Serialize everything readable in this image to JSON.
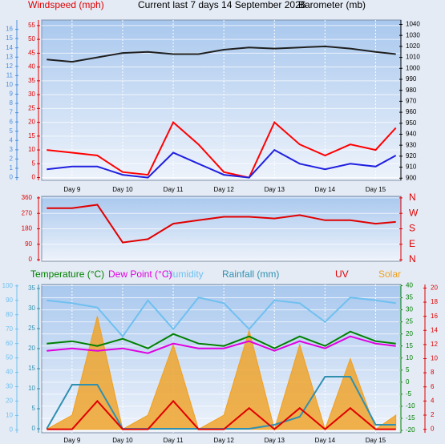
{
  "chart_data": [
    {
      "type": "line",
      "title": "Current last 7 days 14 September 2026",
      "ylabel": "Windspeed (mph)",
      "y2label": "Barometer (mb)",
      "x": [
        8.5,
        9,
        9.5,
        10,
        10.5,
        11,
        11.5,
        12,
        12.5,
        13,
        13.5,
        14,
        14.5,
        15,
        15.4
      ],
      "xlim": [
        8.4,
        15.5
      ],
      "xticks": [
        {
          "value": 9,
          "label": "Day 9"
        },
        {
          "value": 10,
          "label": "Day 10"
        },
        {
          "value": 11,
          "label": "Day 11"
        },
        {
          "value": 12,
          "label": "Day 12"
        },
        {
          "value": 13,
          "label": "Day 13"
        },
        {
          "value": 14,
          "label": "Day 14"
        },
        {
          "value": 15,
          "label": "Day 15"
        }
      ],
      "ylim": [
        -1,
        57
      ],
      "yticks": [
        0,
        5,
        10,
        15,
        20,
        25,
        30,
        35,
        40,
        45,
        50,
        55
      ],
      "y2lim": [
        898,
        1044
      ],
      "y2ticks": [
        900,
        910,
        920,
        930,
        940,
        950,
        960,
        970,
        980,
        990,
        1000,
        1010,
        1020,
        1030,
        1040
      ],
      "y3lim": [
        -0.3,
        17
      ],
      "y3ticks": [
        0,
        1,
        2,
        3,
        4,
        5,
        6,
        7,
        8,
        9,
        10,
        11,
        12,
        13,
        14,
        15,
        16
      ],
      "grid": "y",
      "series": [
        {
          "color": "#ff0000",
          "values": [
            10,
            9,
            8,
            2,
            1,
            20,
            12,
            2,
            0,
            20,
            12,
            8,
            12,
            10,
            18
          ]
        },
        {
          "color": "#2020e0",
          "values": [
            3,
            4,
            4,
            1,
            0,
            9,
            5,
            1,
            0,
            10,
            5,
            3,
            5,
            4,
            8
          ]
        },
        {
          "color": "#202020",
          "axis": "y2",
          "values": [
            1008,
            1006,
            1010,
            1014,
            1015,
            1013,
            1013,
            1017,
            1019,
            1018,
            1019,
            1020,
            1018,
            1015,
            1013
          ]
        }
      ]
    },
    {
      "type": "line",
      "x": [
        8.5,
        9,
        9.5,
        10,
        10.5,
        11,
        11.5,
        12,
        12.5,
        13,
        13.5,
        14,
        14.5,
        15,
        15.4
      ],
      "xlim": [
        8.4,
        15.5
      ],
      "ylim": [
        -9,
        369
      ],
      "yticks": [
        0,
        90,
        180,
        270,
        360
      ],
      "y2lim": [
        -9,
        369
      ],
      "y2ticks": [
        {
          "value": 360,
          "label": "N"
        },
        {
          "value": 270,
          "label": "W"
        },
        {
          "value": 180,
          "label": "S"
        },
        {
          "value": 90,
          "label": "E"
        },
        {
          "value": 0,
          "label": "N"
        }
      ],
      "grid": "y",
      "series": [
        {
          "color": "#e00000",
          "values": [
            300,
            300,
            320,
            100,
            120,
            210,
            230,
            250,
            250,
            240,
            260,
            230,
            230,
            210,
            220
          ]
        }
      ]
    },
    {
      "type": "line",
      "x": [
        8.5,
        9,
        9.5,
        10,
        10.5,
        11,
        11.5,
        12,
        12.5,
        13,
        13.5,
        14,
        14.5,
        15,
        15.4
      ],
      "xlim": [
        8.4,
        15.5
      ],
      "xticks": [
        {
          "value": 9,
          "label": "Day 9"
        },
        {
          "value": 10,
          "label": "Day 10"
        },
        {
          "value": 11,
          "label": "Day 11"
        },
        {
          "value": 12,
          "label": "Day 12"
        },
        {
          "value": 13,
          "label": "Day 13"
        },
        {
          "value": 14,
          "label": "Day 14"
        },
        {
          "value": 15,
          "label": "Day 15"
        }
      ],
      "ylim": [
        -2,
        101
      ],
      "yticks": [
        0,
        10,
        20,
        30,
        40,
        50,
        60,
        70,
        80,
        90,
        100
      ],
      "y2lim": [
        -21,
        40.5
      ],
      "y2ticks": [
        -20,
        -15,
        -10,
        -5,
        0,
        5,
        10,
        15,
        20,
        25,
        30,
        35,
        40
      ],
      "y3lim": [
        -1,
        36
      ],
      "y3ticks": [
        0,
        5,
        10,
        15,
        20,
        25,
        30,
        35
      ],
      "y4lim": [
        -0.5,
        20.5
      ],
      "y4ticks": [
        0,
        2,
        4,
        6,
        8,
        10,
        12,
        14,
        16,
        18,
        20
      ],
      "grid": "y2",
      "series": [
        {
          "name": "Solar",
          "color": "#f0a020",
          "axis": "y4",
          "fill": true,
          "values": [
            0,
            2,
            16,
            0,
            2,
            12,
            0,
            2,
            14,
            0,
            12,
            0,
            10,
            0,
            2
          ]
        },
        {
          "name": "Humidity",
          "color": "#70c0f0",
          "values": [
            90,
            88,
            85,
            65,
            90,
            70,
            92,
            88,
            70,
            90,
            88,
            75,
            92,
            90,
            88
          ]
        },
        {
          "name": "Rainfall (mm)",
          "color": "#3090b0",
          "axis": "y3",
          "values": [
            0,
            11,
            11,
            0,
            0,
            0,
            0,
            0,
            0,
            1,
            3,
            13,
            13,
            1,
            1
          ]
        },
        {
          "name": "UV",
          "color": "#e00000",
          "axis": "y4",
          "values": [
            0,
            0,
            4,
            0,
            0,
            4,
            0,
            0,
            3,
            0,
            3,
            0,
            3,
            0,
            0
          ]
        },
        {
          "name": "Temperature (°C)",
          "color": "#008000",
          "axis": "y2",
          "values": [
            16,
            17,
            15,
            18,
            14,
            20,
            16,
            15,
            19,
            14,
            19,
            15,
            21,
            17,
            16
          ]
        },
        {
          "name": "Dew Point (°C)",
          "color": "#e000e0",
          "axis": "y2",
          "values": [
            13,
            14,
            13,
            14,
            12,
            16,
            14,
            14,
            17,
            13,
            17,
            14,
            19,
            16,
            15
          ]
        }
      ]
    }
  ]
}
